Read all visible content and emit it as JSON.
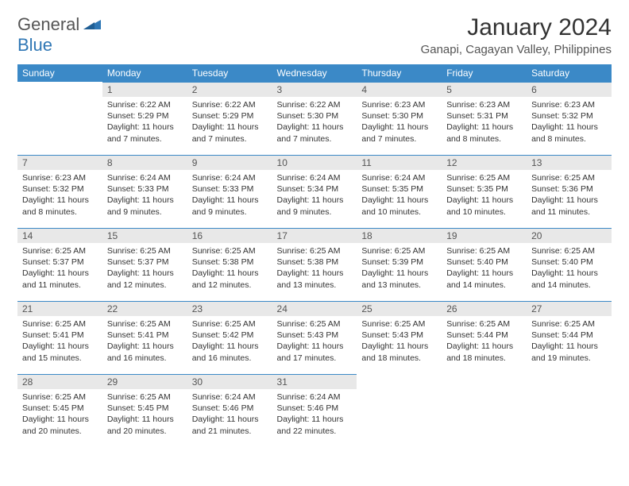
{
  "logo": {
    "text1": "General",
    "text2": "Blue"
  },
  "title": "January 2024",
  "location": "Ganapi, Cagayan Valley, Philippines",
  "colors": {
    "header_bg": "#3b89c7",
    "header_text": "#ffffff",
    "daynum_bg": "#e8e8e8",
    "daynum_border": "#3b89c7",
    "logo_gray": "#555555",
    "logo_blue": "#2f77b5",
    "body_text": "#333333",
    "background": "#ffffff"
  },
  "weekdays": [
    "Sunday",
    "Monday",
    "Tuesday",
    "Wednesday",
    "Thursday",
    "Friday",
    "Saturday"
  ],
  "grid": {
    "first_weekday_index": 1,
    "days_in_month": 31
  },
  "days": {
    "1": {
      "sunrise": "6:22 AM",
      "sunset": "5:29 PM",
      "daylight": "11 hours and 7 minutes."
    },
    "2": {
      "sunrise": "6:22 AM",
      "sunset": "5:29 PM",
      "daylight": "11 hours and 7 minutes."
    },
    "3": {
      "sunrise": "6:22 AM",
      "sunset": "5:30 PM",
      "daylight": "11 hours and 7 minutes."
    },
    "4": {
      "sunrise": "6:23 AM",
      "sunset": "5:30 PM",
      "daylight": "11 hours and 7 minutes."
    },
    "5": {
      "sunrise": "6:23 AM",
      "sunset": "5:31 PM",
      "daylight": "11 hours and 8 minutes."
    },
    "6": {
      "sunrise": "6:23 AM",
      "sunset": "5:32 PM",
      "daylight": "11 hours and 8 minutes."
    },
    "7": {
      "sunrise": "6:23 AM",
      "sunset": "5:32 PM",
      "daylight": "11 hours and 8 minutes."
    },
    "8": {
      "sunrise": "6:24 AM",
      "sunset": "5:33 PM",
      "daylight": "11 hours and 9 minutes."
    },
    "9": {
      "sunrise": "6:24 AM",
      "sunset": "5:33 PM",
      "daylight": "11 hours and 9 minutes."
    },
    "10": {
      "sunrise": "6:24 AM",
      "sunset": "5:34 PM",
      "daylight": "11 hours and 9 minutes."
    },
    "11": {
      "sunrise": "6:24 AM",
      "sunset": "5:35 PM",
      "daylight": "11 hours and 10 minutes."
    },
    "12": {
      "sunrise": "6:25 AM",
      "sunset": "5:35 PM",
      "daylight": "11 hours and 10 minutes."
    },
    "13": {
      "sunrise": "6:25 AM",
      "sunset": "5:36 PM",
      "daylight": "11 hours and 11 minutes."
    },
    "14": {
      "sunrise": "6:25 AM",
      "sunset": "5:37 PM",
      "daylight": "11 hours and 11 minutes."
    },
    "15": {
      "sunrise": "6:25 AM",
      "sunset": "5:37 PM",
      "daylight": "11 hours and 12 minutes."
    },
    "16": {
      "sunrise": "6:25 AM",
      "sunset": "5:38 PM",
      "daylight": "11 hours and 12 minutes."
    },
    "17": {
      "sunrise": "6:25 AM",
      "sunset": "5:38 PM",
      "daylight": "11 hours and 13 minutes."
    },
    "18": {
      "sunrise": "6:25 AM",
      "sunset": "5:39 PM",
      "daylight": "11 hours and 13 minutes."
    },
    "19": {
      "sunrise": "6:25 AM",
      "sunset": "5:40 PM",
      "daylight": "11 hours and 14 minutes."
    },
    "20": {
      "sunrise": "6:25 AM",
      "sunset": "5:40 PM",
      "daylight": "11 hours and 14 minutes."
    },
    "21": {
      "sunrise": "6:25 AM",
      "sunset": "5:41 PM",
      "daylight": "11 hours and 15 minutes."
    },
    "22": {
      "sunrise": "6:25 AM",
      "sunset": "5:41 PM",
      "daylight": "11 hours and 16 minutes."
    },
    "23": {
      "sunrise": "6:25 AM",
      "sunset": "5:42 PM",
      "daylight": "11 hours and 16 minutes."
    },
    "24": {
      "sunrise": "6:25 AM",
      "sunset": "5:43 PM",
      "daylight": "11 hours and 17 minutes."
    },
    "25": {
      "sunrise": "6:25 AM",
      "sunset": "5:43 PM",
      "daylight": "11 hours and 18 minutes."
    },
    "26": {
      "sunrise": "6:25 AM",
      "sunset": "5:44 PM",
      "daylight": "11 hours and 18 minutes."
    },
    "27": {
      "sunrise": "6:25 AM",
      "sunset": "5:44 PM",
      "daylight": "11 hours and 19 minutes."
    },
    "28": {
      "sunrise": "6:25 AM",
      "sunset": "5:45 PM",
      "daylight": "11 hours and 20 minutes."
    },
    "29": {
      "sunrise": "6:25 AM",
      "sunset": "5:45 PM",
      "daylight": "11 hours and 20 minutes."
    },
    "30": {
      "sunrise": "6:24 AM",
      "sunset": "5:46 PM",
      "daylight": "11 hours and 21 minutes."
    },
    "31": {
      "sunrise": "6:24 AM",
      "sunset": "5:46 PM",
      "daylight": "11 hours and 22 minutes."
    }
  },
  "labels": {
    "sunrise_prefix": "Sunrise: ",
    "sunset_prefix": "Sunset: ",
    "daylight_prefix": "Daylight: "
  },
  "typography": {
    "title_fontsize": 30,
    "location_fontsize": 15,
    "weekday_fontsize": 12,
    "daynum_fontsize": 12,
    "body_fontsize": 10.5
  }
}
